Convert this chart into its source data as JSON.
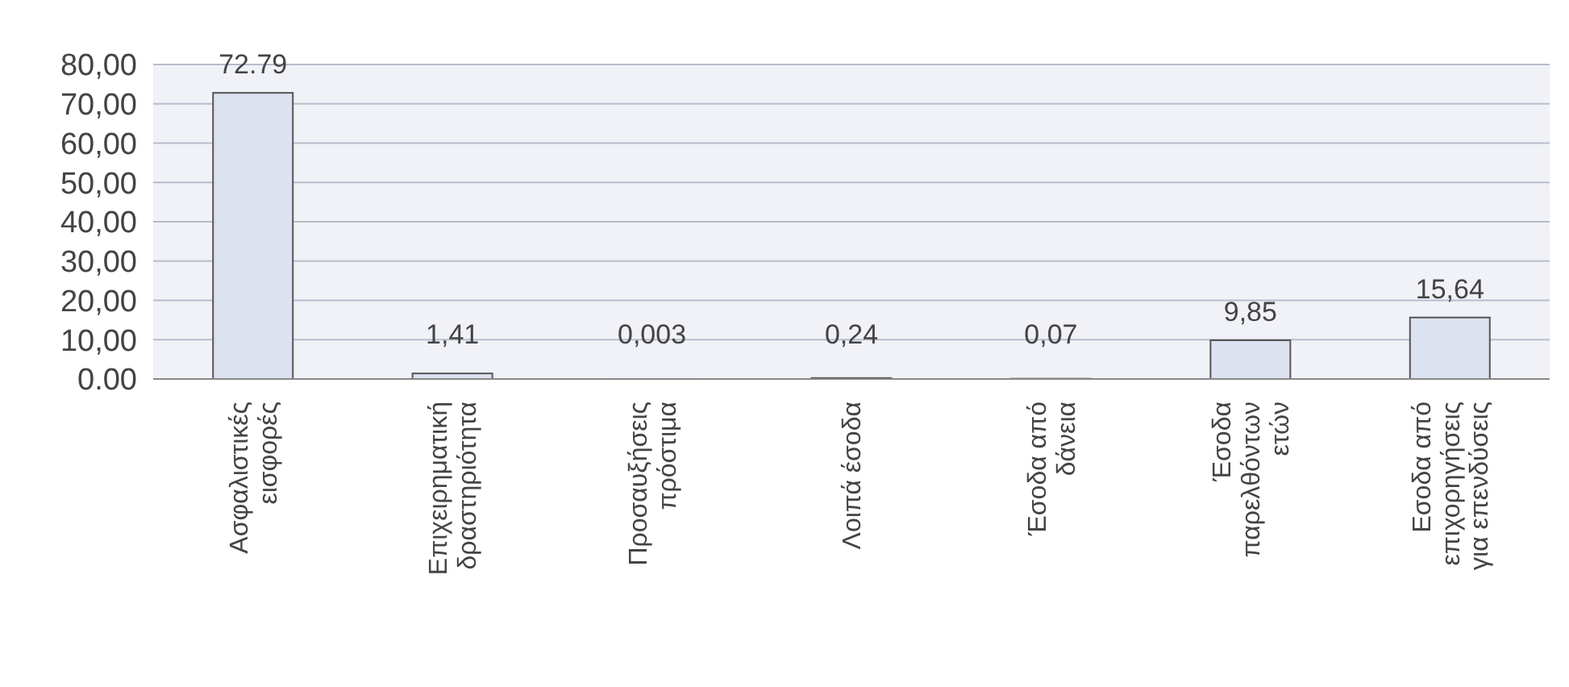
{
  "chart_data": {
    "type": "bar",
    "categories": [
      "Ασφαλιστικές εισφορές",
      "Επιχειρηματική δραστηριότητα",
      "Προσαυξήσεις πρόστιμα",
      "Λοιπά έσοδα",
      "Έσοδα από δάνεια",
      "Έσοδα παρελθόντων ετών",
      "Εσοδα από επιχορηγήσεις για επενδύσεις"
    ],
    "values": [
      72.79,
      1.41,
      0.003,
      0.24,
      0.07,
      9.85,
      15.64
    ],
    "value_labels": [
      "72.79",
      "1,41",
      "0,003",
      "0,24",
      "0,07",
      "9,85",
      "15,64"
    ],
    "color": "#dce2f0",
    "ylim": [
      0,
      80
    ],
    "yticks": [
      {
        "value": 0,
        "label": "0.00"
      },
      {
        "value": 10,
        "label": "10,00"
      },
      {
        "value": 20,
        "label": "20,00"
      },
      {
        "value": 30,
        "label": "30,00"
      },
      {
        "value": 40,
        "label": "40,00"
      },
      {
        "value": 50,
        "label": "50,00"
      },
      {
        "value": 60,
        "label": "60,00"
      },
      {
        "value": 70,
        "label": "70,00"
      },
      {
        "value": 80,
        "label": "80,00"
      }
    ],
    "grid": "y"
  }
}
